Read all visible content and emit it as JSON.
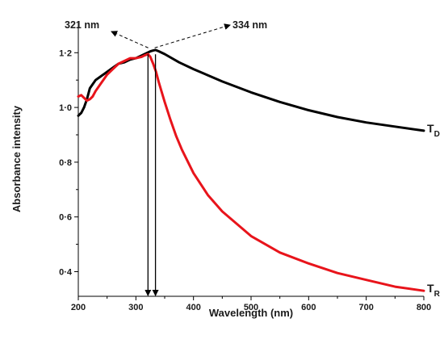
{
  "chart_data": {
    "type": "line",
    "title": "",
    "xlabel": "Wavelength (nm)",
    "ylabel": "Absorbance intensity",
    "xlim": [
      200,
      800
    ],
    "ylim": [
      0.31,
      1.31
    ],
    "x_ticks": [
      200,
      300,
      400,
      500,
      600,
      700,
      800
    ],
    "x_tick_labels": [
      "200",
      "300",
      "400",
      "500",
      "600",
      "700",
      "800"
    ],
    "y_ticks": [
      0.4,
      0.6,
      0.8,
      1.0,
      1.2
    ],
    "y_tick_labels": [
      "0·4",
      "0·6",
      "0·8",
      "1·0",
      "1·2"
    ],
    "grid": false,
    "legend": "inline labels at right end of each curve",
    "series": [
      {
        "label_main": "T",
        "label_sub": "D",
        "color": "#000000",
        "x": [
          200,
          205,
          210,
          215,
          220,
          230,
          240,
          250,
          260,
          270,
          280,
          290,
          300,
          310,
          320,
          325,
          330,
          334,
          340,
          350,
          375,
          400,
          450,
          500,
          550,
          600,
          650,
          700,
          750,
          800
        ],
        "y": [
          0.97,
          0.98,
          1.0,
          1.03,
          1.07,
          1.1,
          1.115,
          1.13,
          1.145,
          1.16,
          1.165,
          1.175,
          1.18,
          1.19,
          1.2,
          1.205,
          1.208,
          1.21,
          1.205,
          1.195,
          1.165,
          1.14,
          1.095,
          1.055,
          1.02,
          0.99,
          0.965,
          0.945,
          0.93,
          0.915
        ]
      },
      {
        "label_main": "T",
        "label_sub": "R",
        "color": "#e8141b",
        "x": [
          200,
          205,
          210,
          215,
          220,
          225,
          230,
          240,
          250,
          260,
          270,
          280,
          290,
          300,
          310,
          315,
          321,
          325,
          330,
          335,
          340,
          350,
          360,
          370,
          380,
          400,
          425,
          450,
          500,
          550,
          600,
          650,
          700,
          750,
          800
        ],
        "y": [
          1.04,
          1.045,
          1.035,
          1.025,
          1.03,
          1.04,
          1.06,
          1.09,
          1.12,
          1.14,
          1.16,
          1.17,
          1.18,
          1.18,
          1.185,
          1.19,
          1.195,
          1.185,
          1.16,
          1.13,
          1.09,
          1.02,
          0.955,
          0.895,
          0.845,
          0.76,
          0.68,
          0.62,
          0.53,
          0.47,
          0.43,
          0.395,
          0.37,
          0.345,
          0.33
        ]
      }
    ],
    "annotations": [
      {
        "text": "321 nm",
        "x": 321
      },
      {
        "text": "334 nm",
        "x": 334
      }
    ]
  }
}
